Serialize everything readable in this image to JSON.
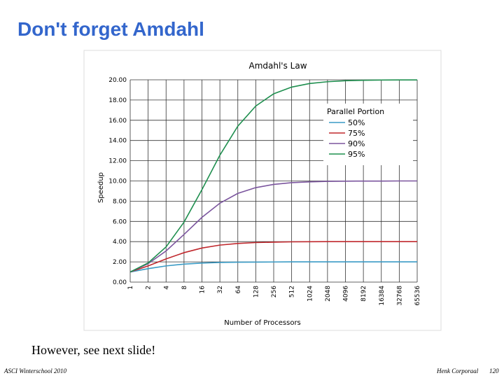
{
  "slide": {
    "title": "Don't forget Amdahl",
    "note": "However, see next slide!",
    "footer_left": "ASCI Winterschool 2010",
    "footer_author": "Henk Corporaal",
    "footer_page": "120"
  },
  "chart_data": {
    "type": "line",
    "title": "Amdahl's Law",
    "x_label": "Number of Processors",
    "y_label": "Speedup",
    "categories": [
      1,
      2,
      4,
      8,
      16,
      32,
      64,
      128,
      256,
      512,
      1024,
      2048,
      4096,
      8192,
      16384,
      32768,
      65536
    ],
    "legend_title": "Parallel Portion",
    "legend": "upper-right",
    "grid": true,
    "ylim": [
      0,
      20
    ],
    "yticks": [
      {
        "value": 0,
        "label": "0.00"
      },
      {
        "value": 2,
        "label": "2.00"
      },
      {
        "value": 4,
        "label": "4.00"
      },
      {
        "value": 6,
        "label": "6.00"
      },
      {
        "value": 8,
        "label": "8.00"
      },
      {
        "value": 10,
        "label": "10.00"
      },
      {
        "value": 12,
        "label": "12.00"
      },
      {
        "value": 14,
        "label": "14.00"
      },
      {
        "value": 16,
        "label": "16.00"
      },
      {
        "value": 18,
        "label": "18.00"
      },
      {
        "value": 20,
        "label": "20.00"
      }
    ],
    "series": [
      {
        "name": "50%",
        "color": "#3a9bc5",
        "values": [
          1,
          1.33,
          1.6,
          1.78,
          1.88,
          1.94,
          1.97,
          1.98,
          1.99,
          2,
          2,
          2,
          2,
          2,
          2,
          2,
          2
        ]
      },
      {
        "name": "75%",
        "color": "#c0282d",
        "values": [
          1,
          1.6,
          2.29,
          2.91,
          3.37,
          3.66,
          3.82,
          3.91,
          3.95,
          3.98,
          3.99,
          4,
          4,
          4,
          4,
          4,
          4
        ]
      },
      {
        "name": "90%",
        "color": "#7b559e",
        "values": [
          1,
          1.82,
          3.08,
          4.71,
          6.4,
          7.8,
          8.77,
          9.34,
          9.66,
          9.83,
          9.91,
          9.96,
          9.98,
          9.99,
          9.99,
          10,
          10
        ]
      },
      {
        "name": "95%",
        "color": "#1f8f4f",
        "values": [
          1,
          1.9,
          3.48,
          5.93,
          9.14,
          12.55,
          15.42,
          17.41,
          18.62,
          19.28,
          19.63,
          19.81,
          19.91,
          19.95,
          19.98,
          19.99,
          19.99
        ]
      }
    ]
  }
}
